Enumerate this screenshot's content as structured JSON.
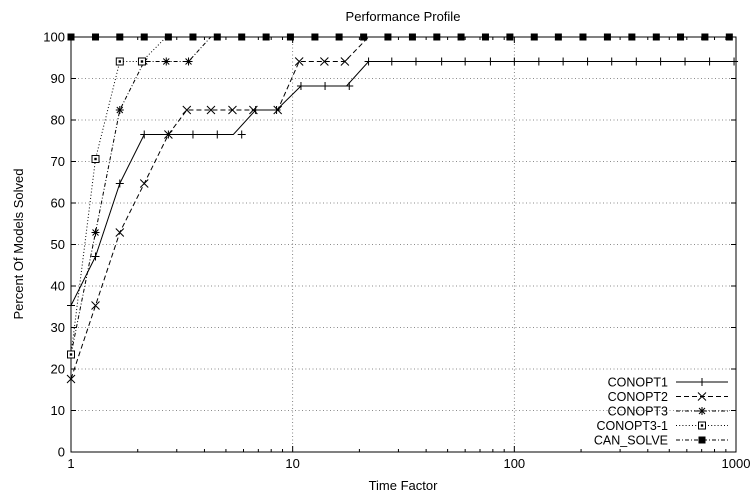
{
  "chart_data": {
    "type": "line",
    "title": "Performance Profile",
    "xlabel": "Time Factor",
    "ylabel": "Percent Of Models Solved",
    "x_scale": "log",
    "xlim": [
      1,
      1000
    ],
    "ylim": [
      0,
      100
    ],
    "x_ticks": [
      1,
      10,
      100,
      1000
    ],
    "y_ticks": [
      0,
      10,
      20,
      30,
      40,
      50,
      60,
      70,
      80,
      90,
      100
    ],
    "grid": true,
    "legend_position": "bottom-right",
    "series": [
      {
        "name": "CONOPT1",
        "style": "solid",
        "marker": "plus",
        "marker_values": [
          [
            1,
            35.3
          ],
          [
            1.29,
            47.1
          ],
          [
            1.66,
            64.7
          ],
          [
            2.14,
            76.5
          ],
          [
            2.75,
            76.5
          ],
          [
            3.55,
            76.5
          ],
          [
            4.57,
            76.5
          ],
          [
            5.89,
            76.5
          ],
          [
            6.81,
            82.4
          ],
          [
            8.46,
            82.4
          ],
          [
            10.9,
            88.2
          ],
          [
            14.0,
            88.2
          ],
          [
            18.0,
            88.2
          ],
          [
            22.0,
            94.1
          ],
          [
            28,
            94.1
          ],
          [
            36,
            94.1
          ],
          [
            47,
            94.1
          ],
          [
            60,
            94.1
          ],
          [
            78,
            94.1
          ],
          [
            100,
            94.1
          ],
          [
            129,
            94.1
          ],
          [
            166,
            94.1
          ],
          [
            214,
            94.1
          ],
          [
            275,
            94.1
          ],
          [
            355,
            94.1
          ],
          [
            457,
            94.1
          ],
          [
            589,
            94.1
          ],
          [
            760,
            94.1
          ],
          [
            980,
            94.1
          ]
        ],
        "line_values": [
          [
            1,
            35.3
          ],
          [
            1.29,
            47.1
          ],
          [
            1.66,
            64.7
          ],
          [
            2.14,
            76.5
          ],
          [
            5.4,
            76.5
          ],
          [
            6.81,
            82.4
          ],
          [
            8.46,
            82.4
          ],
          [
            10.9,
            88.2
          ],
          [
            17.5,
            88.2
          ],
          [
            22.0,
            94.1
          ],
          [
            1000,
            94.1
          ]
        ]
      },
      {
        "name": "CONOPT2",
        "style": "dashed",
        "marker": "cross",
        "marker_values": [
          [
            1,
            17.6
          ],
          [
            1.29,
            35.3
          ],
          [
            1.66,
            52.9
          ],
          [
            2.14,
            64.7
          ],
          [
            2.75,
            76.5
          ],
          [
            3.33,
            82.4
          ],
          [
            4.28,
            82.4
          ],
          [
            5.35,
            82.4
          ],
          [
            6.65,
            82.4
          ],
          [
            8.56,
            82.4
          ],
          [
            10.7,
            94.1
          ],
          [
            13.9,
            94.1
          ],
          [
            17.2,
            94.1
          ]
        ],
        "line_values": [
          [
            1,
            17.6
          ],
          [
            1.29,
            35.3
          ],
          [
            1.66,
            52.9
          ],
          [
            2.14,
            64.7
          ],
          [
            2.75,
            76.5
          ],
          [
            3.33,
            82.4
          ],
          [
            8.56,
            82.4
          ],
          [
            10.7,
            94.1
          ],
          [
            17.2,
            94.1
          ],
          [
            22.0,
            100
          ],
          [
            1000,
            100
          ]
        ]
      },
      {
        "name": "CONOPT3",
        "style": "dash-dot",
        "marker": "star",
        "marker_values": [
          [
            1,
            23.5
          ],
          [
            1.29,
            52.9
          ],
          [
            1.66,
            82.4
          ],
          [
            2.14,
            94.1
          ],
          [
            2.69,
            94.1
          ],
          [
            3.39,
            94.1
          ]
        ],
        "line_values": [
          [
            1,
            23.5
          ],
          [
            1.29,
            52.9
          ],
          [
            1.66,
            82.4
          ],
          [
            2.14,
            94.1
          ],
          [
            3.39,
            94.1
          ],
          [
            4.27,
            100
          ],
          [
            1000,
            100
          ]
        ]
      },
      {
        "name": "CONOPT3-1",
        "style": "dotted",
        "marker": "open-square",
        "marker_values": [
          [
            1,
            23.5
          ],
          [
            1.29,
            70.6
          ],
          [
            1.66,
            94.1
          ],
          [
            2.09,
            94.1
          ]
        ],
        "line_values": [
          [
            1,
            23.5
          ],
          [
            1.29,
            70.6
          ],
          [
            1.66,
            94.1
          ],
          [
            2.09,
            94.1
          ],
          [
            2.69,
            100
          ],
          [
            1000,
            100
          ]
        ]
      },
      {
        "name": "CAN_SOLVE",
        "style": "dash-dot",
        "marker": "filled-square",
        "marker_values": [
          [
            1,
            100
          ],
          [
            1.29,
            100
          ],
          [
            1.66,
            100
          ],
          [
            2.14,
            100
          ],
          [
            2.75,
            100
          ],
          [
            3.55,
            100
          ],
          [
            4.57,
            100
          ],
          [
            5.89,
            100
          ],
          [
            7.59,
            100
          ],
          [
            9.77,
            100
          ],
          [
            12.6,
            100
          ],
          [
            16.2,
            100
          ],
          [
            20.9,
            100
          ],
          [
            26.9,
            100
          ],
          [
            34.7,
            100
          ],
          [
            44.7,
            100
          ],
          [
            57.5,
            100
          ],
          [
            74.1,
            100
          ],
          [
            95.5,
            100
          ],
          [
            123,
            100
          ],
          [
            158,
            100
          ],
          [
            204,
            100
          ],
          [
            263,
            100
          ],
          [
            339,
            100
          ],
          [
            437,
            100
          ],
          [
            562,
            100
          ],
          [
            724,
            100
          ],
          [
            933,
            100
          ]
        ],
        "line_values": [
          [
            1,
            100
          ],
          [
            1000,
            100
          ]
        ]
      }
    ]
  }
}
